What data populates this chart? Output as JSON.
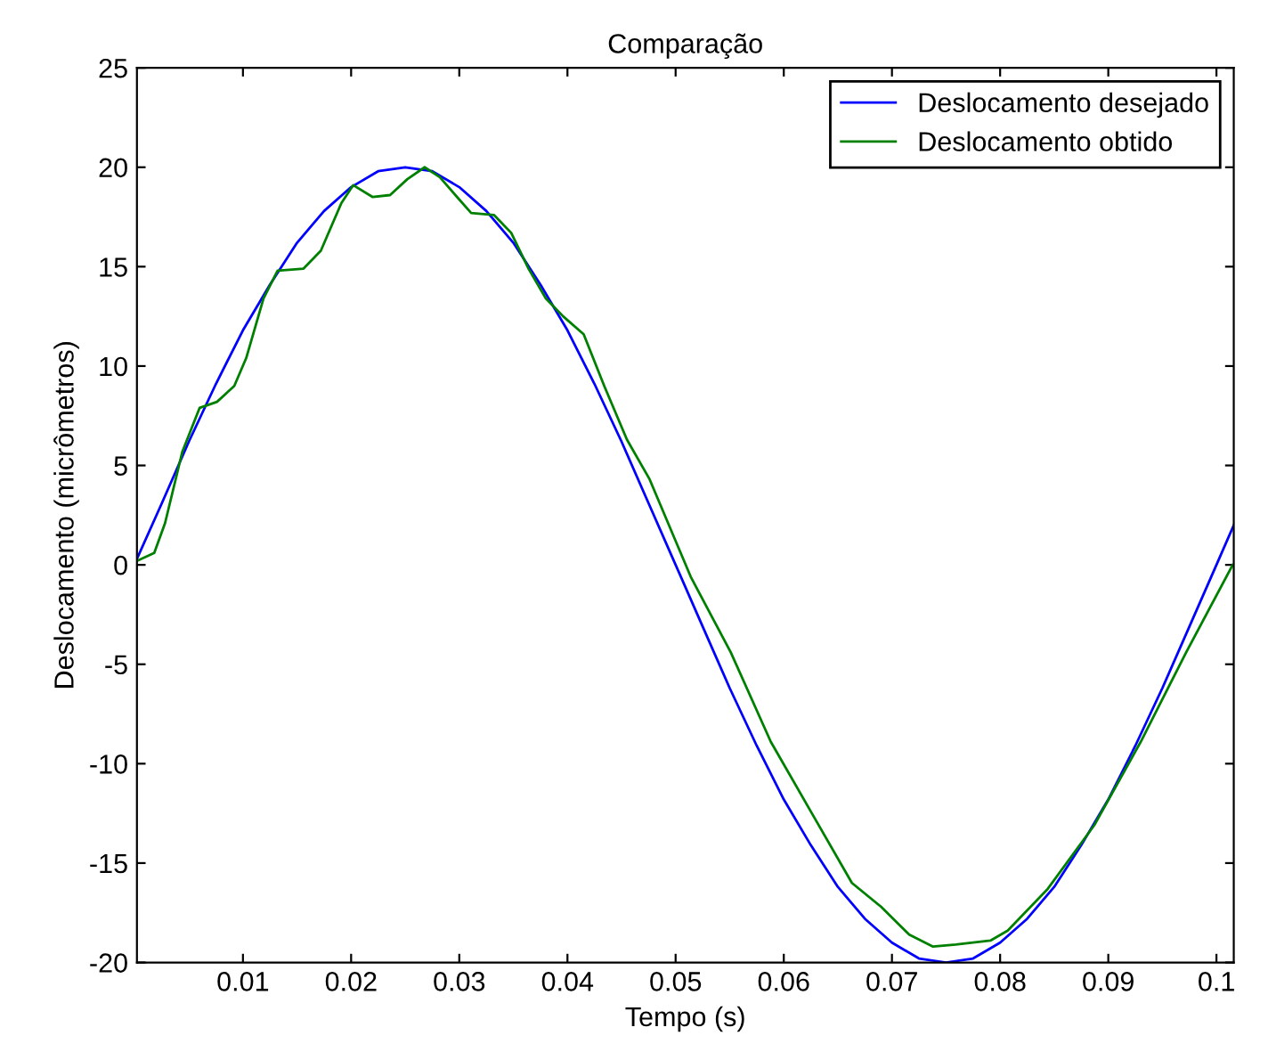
{
  "chart_data": {
    "type": "line",
    "title": "Comparação",
    "xlabel": "Tempo (s)",
    "ylabel": "Deslocamento (micrômetros)",
    "xlim": [
      0.0002,
      0.1016
    ],
    "ylim": [
      -20,
      25
    ],
    "xticks": [
      0.01,
      0.02,
      0.03,
      0.04,
      0.05,
      0.06,
      0.07,
      0.08,
      0.09,
      0.1
    ],
    "yticks": [
      -20,
      -15,
      -10,
      -5,
      0,
      5,
      10,
      15,
      20,
      25
    ],
    "grid": false,
    "legend": "top right",
    "marker": "none",
    "line_style": "solid",
    "series": [
      {
        "name": "Deslocamento desejado",
        "color": "#0000ff",
        "x": [
          0.0002,
          0.0025,
          0.005,
          0.0075,
          0.01,
          0.0125,
          0.015,
          0.0175,
          0.02,
          0.0225,
          0.025,
          0.0275,
          0.03,
          0.0325,
          0.035,
          0.0375,
          0.04,
          0.0425,
          0.045,
          0.0475,
          0.05,
          0.0525,
          0.055,
          0.0575,
          0.06,
          0.0625,
          0.065,
          0.0675,
          0.07,
          0.0725,
          0.075,
          0.0775,
          0.08,
          0.0825,
          0.085,
          0.0875,
          0.09,
          0.0925,
          0.095,
          0.0975,
          0.1,
          0.1016
        ],
        "values": [
          0.3,
          3.1,
          6.2,
          9.1,
          11.8,
          14.1,
          16.2,
          17.8,
          19.0,
          19.8,
          20.0,
          19.8,
          19.0,
          17.8,
          16.2,
          14.1,
          11.8,
          9.1,
          6.2,
          3.1,
          0.0,
          -3.1,
          -6.2,
          -9.1,
          -11.8,
          -14.1,
          -16.2,
          -17.8,
          -19.0,
          -19.8,
          -20.0,
          -19.8,
          -19.0,
          -17.8,
          -16.2,
          -14.1,
          -11.8,
          -9.1,
          -6.2,
          -3.1,
          0.0,
          2.0
        ]
      },
      {
        "name": "Deslocamento obtido",
        "color": "#008000",
        "x": [
          0.0002,
          0.0018,
          0.0028,
          0.0044,
          0.006,
          0.0076,
          0.0092,
          0.0103,
          0.0119,
          0.0132,
          0.0156,
          0.0172,
          0.0191,
          0.0202,
          0.022,
          0.0236,
          0.0252,
          0.0268,
          0.0282,
          0.0298,
          0.0311,
          0.0332,
          0.0348,
          0.0364,
          0.038,
          0.0396,
          0.0415,
          0.0434,
          0.0455,
          0.0476,
          0.0514,
          0.0551,
          0.0588,
          0.0626,
          0.0663,
          0.069,
          0.0716,
          0.0738,
          0.0759,
          0.0791,
          0.0807,
          0.0844,
          0.0887,
          0.093,
          0.0972,
          0.1015
        ],
        "values": [
          0.2,
          0.6,
          2.1,
          5.7,
          7.9,
          8.2,
          9.0,
          10.4,
          13.4,
          14.8,
          14.9,
          15.8,
          18.2,
          19.1,
          18.5,
          18.6,
          19.4,
          20.0,
          19.5,
          18.5,
          17.7,
          17.6,
          16.7,
          14.9,
          13.4,
          12.5,
          11.6,
          9.0,
          6.3,
          4.3,
          -0.6,
          -4.4,
          -8.9,
          -12.5,
          -16.0,
          -17.2,
          -18.6,
          -19.2,
          -19.1,
          -18.9,
          -18.4,
          -16.3,
          -13.1,
          -8.9,
          -4.4,
          0.0
        ]
      }
    ]
  }
}
